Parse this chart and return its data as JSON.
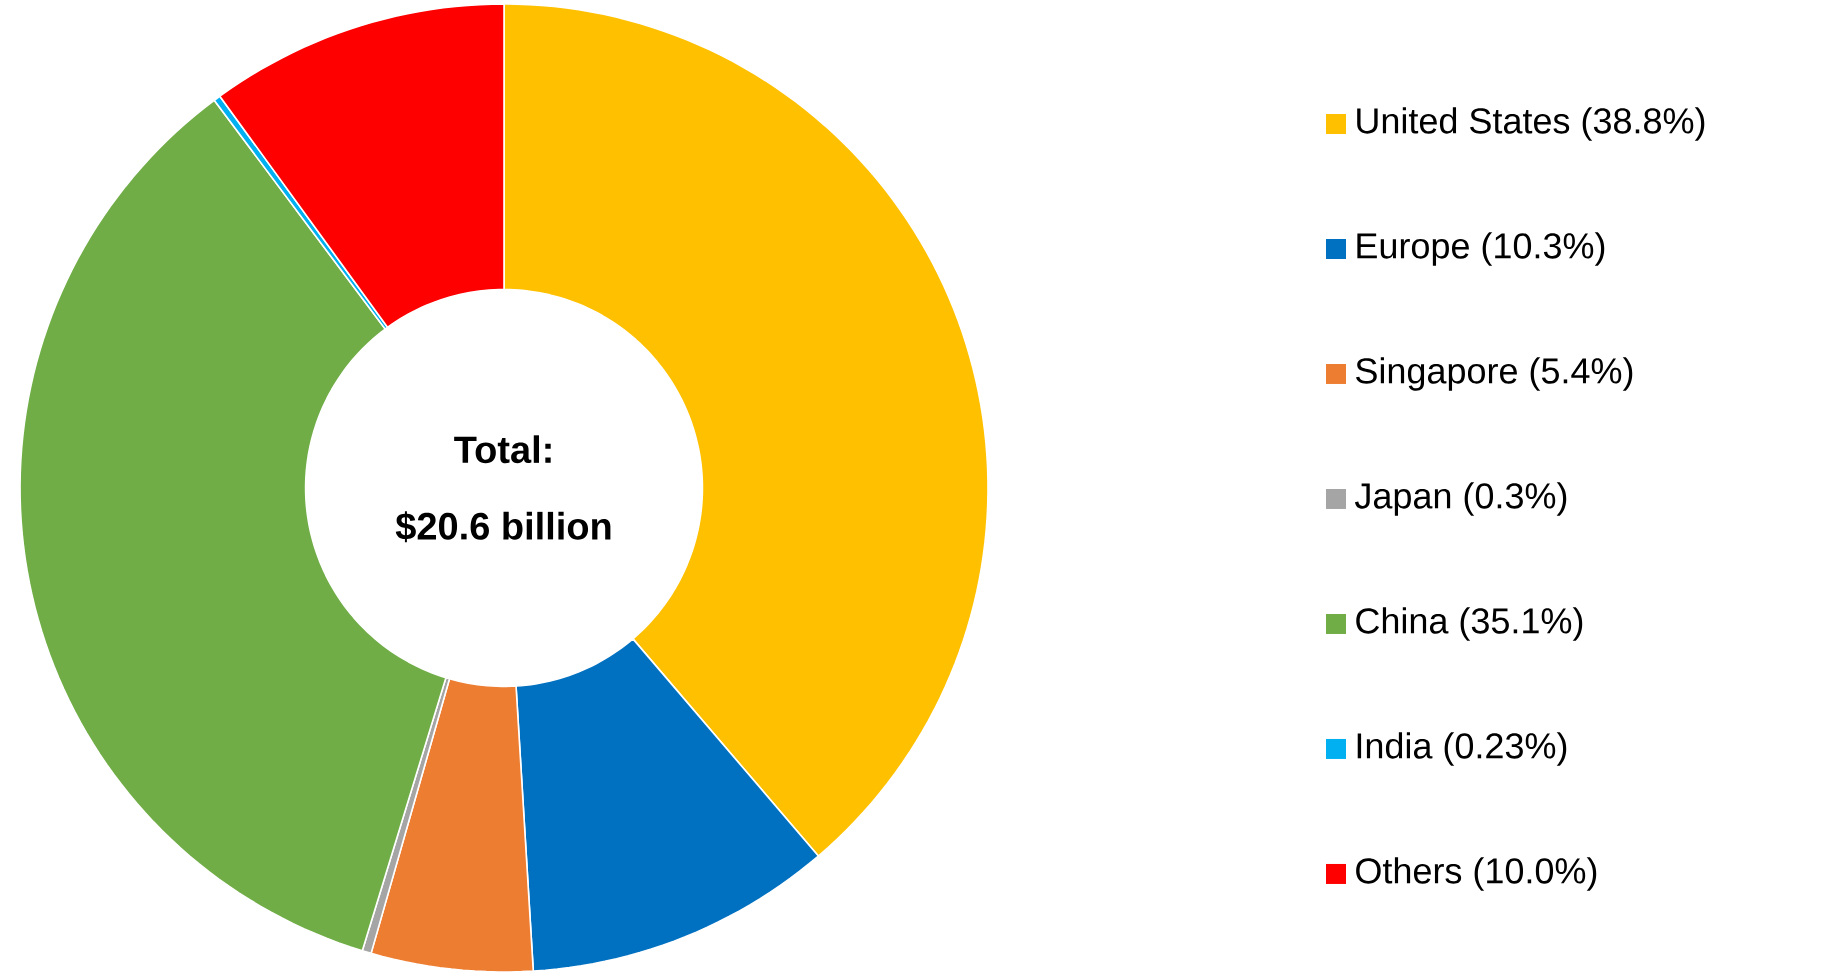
{
  "chart_data": {
    "type": "donut",
    "categories": [
      "United States (38.8%)",
      "Europe (10.3%)",
      "Singapore (5.4%)",
      "Japan (0.3%)",
      "China (35.1%)",
      "India (0.23%)",
      "Others (10.0%)"
    ],
    "values": [
      38.8,
      10.3,
      5.4,
      0.3,
      35.1,
      0.23,
      10.0
    ],
    "colors": [
      "#ffc000",
      "#0070c0",
      "#ed7d31",
      "#a5a5a5",
      "#70ad47",
      "#00b0f0",
      "#ff0000"
    ],
    "annotations": [
      "Total:",
      "$20.6 billion"
    ],
    "legend": "right"
  }
}
